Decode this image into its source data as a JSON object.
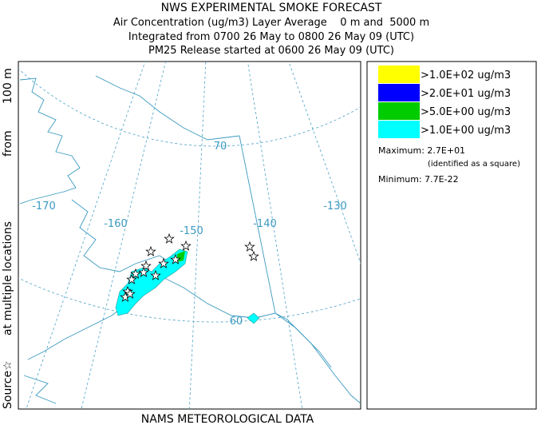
{
  "header": {
    "title": "NWS EXPERIMENTAL SMOKE FORECAST",
    "lines": [
      "Air Concentration (ug/m3) Layer Average    0 m and  5000 m",
      "Integrated from 0700 26 May to 0800 26 May 09 (UTC)",
      "PM25 Release started at 0600 26 May 09 (UTC)"
    ]
  },
  "side_label": [
    "Source☆",
    "at multiple locations",
    "from",
    "100 m"
  ],
  "footer": "NAMS METEOROLOGICAL DATA",
  "map": {
    "meridian_labels": [
      "-170",
      "-160",
      "-150",
      "-140",
      "-130"
    ],
    "parallel_labels": [
      "70",
      "60"
    ]
  },
  "legend": {
    "entries": [
      {
        "label": ">1.0E+02 ug/m3",
        "color": "#ffff00"
      },
      {
        "label": ">2.0E+01 ug/m3",
        "color": "#0000ff"
      },
      {
        "label": ">5.0E+00 ug/m3",
        "color": "#00cc00"
      },
      {
        "label": ">1.0E+00 ug/m3",
        "color": "#00ffff"
      }
    ],
    "maximum": "Maximum: 2.7E+01",
    "maximum_note": "(identified as a square)",
    "minimum": "Minimum: 7.7E-22"
  }
}
